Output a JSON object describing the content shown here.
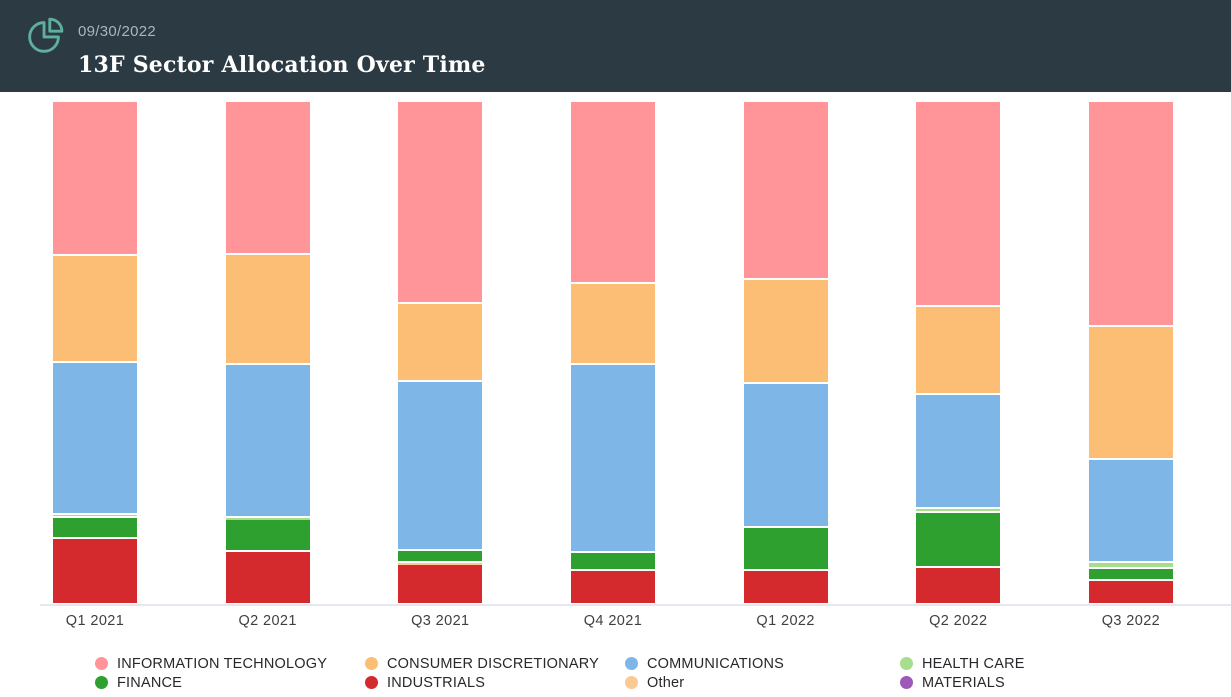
{
  "header": {
    "date": "09/30/2022",
    "title": "13F Sector Allocation Over Time"
  },
  "colors": {
    "header_bg": "#2C3A43",
    "icon_teal": "#5FAE9E",
    "date_text": "#A9B6BC",
    "title_text": "#FFFFFF",
    "axis_line": "#E6E8F1",
    "axis_label": "#3F3F3F",
    "legend_text": "#26282B",
    "segment_border": "#FFFFFF"
  },
  "chart_data": {
    "type": "bar",
    "variant": "stacked-percent",
    "title": "13F Sector Allocation Over Time",
    "categories": [
      "Q1 2021",
      "Q2 2021",
      "Q3 2021",
      "Q4 2021",
      "Q1 2022",
      "Q2 2022",
      "Q3 2022"
    ],
    "series": [
      {
        "name": "INDUSTRIALS",
        "color": "#D42A2E",
        "values": [
          12.8,
          10.1,
          7.5,
          6.3,
          6.3,
          6.9,
          4.4
        ]
      },
      {
        "name": "Other",
        "color": "#FBCA92",
        "values": [
          0,
          0,
          0.4,
          0,
          0,
          0,
          0
        ]
      },
      {
        "name": "FINANCE",
        "color": "#2DA02F",
        "values": [
          4.1,
          6.4,
          2.4,
          3.7,
          8.7,
          11.0,
          2.4
        ]
      },
      {
        "name": "HEALTH CARE",
        "color": "#A6DE8D",
        "values": [
          0.7,
          0.5,
          0,
          0,
          0,
          0.9,
          1.2
        ]
      },
      {
        "name": "COMMUNICATIONS",
        "color": "#7EB6E8",
        "values": [
          30.4,
          30.5,
          33.8,
          37.5,
          28.7,
          22.7,
          20.5
        ]
      },
      {
        "name": "CONSUMER DISCRETIONARY",
        "color": "#FCBE74",
        "values": [
          21.2,
          22.0,
          15.5,
          16.2,
          20.8,
          17.6,
          26.5
        ]
      },
      {
        "name": "INFORMATION TECHNOLOGY",
        "color": "#FF9499",
        "values": [
          30.8,
          30.5,
          40.4,
          36.3,
          35.5,
          40.9,
          45.0
        ]
      },
      {
        "name": "MATERIALS",
        "color": "#9C59B8",
        "values": [
          0,
          0,
          0,
          0,
          0,
          0,
          0
        ]
      }
    ],
    "series_order": "bottom-to-top",
    "ylim": [
      0,
      100
    ],
    "grid": false,
    "legend_position": "bottom"
  },
  "legend": {
    "items": [
      {
        "label": "INFORMATION TECHNOLOGY",
        "color": "#FF9499"
      },
      {
        "label": "CONSUMER DISCRETIONARY",
        "color": "#FCBE74"
      },
      {
        "label": "COMMUNICATIONS",
        "color": "#7EB6E8"
      },
      {
        "label": "HEALTH CARE",
        "color": "#A6DE8D"
      },
      {
        "label": "FINANCE",
        "color": "#2DA02F"
      },
      {
        "label": "INDUSTRIALS",
        "color": "#D42A2E"
      },
      {
        "label": "Other",
        "color": "#FBCA92"
      },
      {
        "label": "MATERIALS",
        "color": "#9C59B8"
      }
    ]
  }
}
